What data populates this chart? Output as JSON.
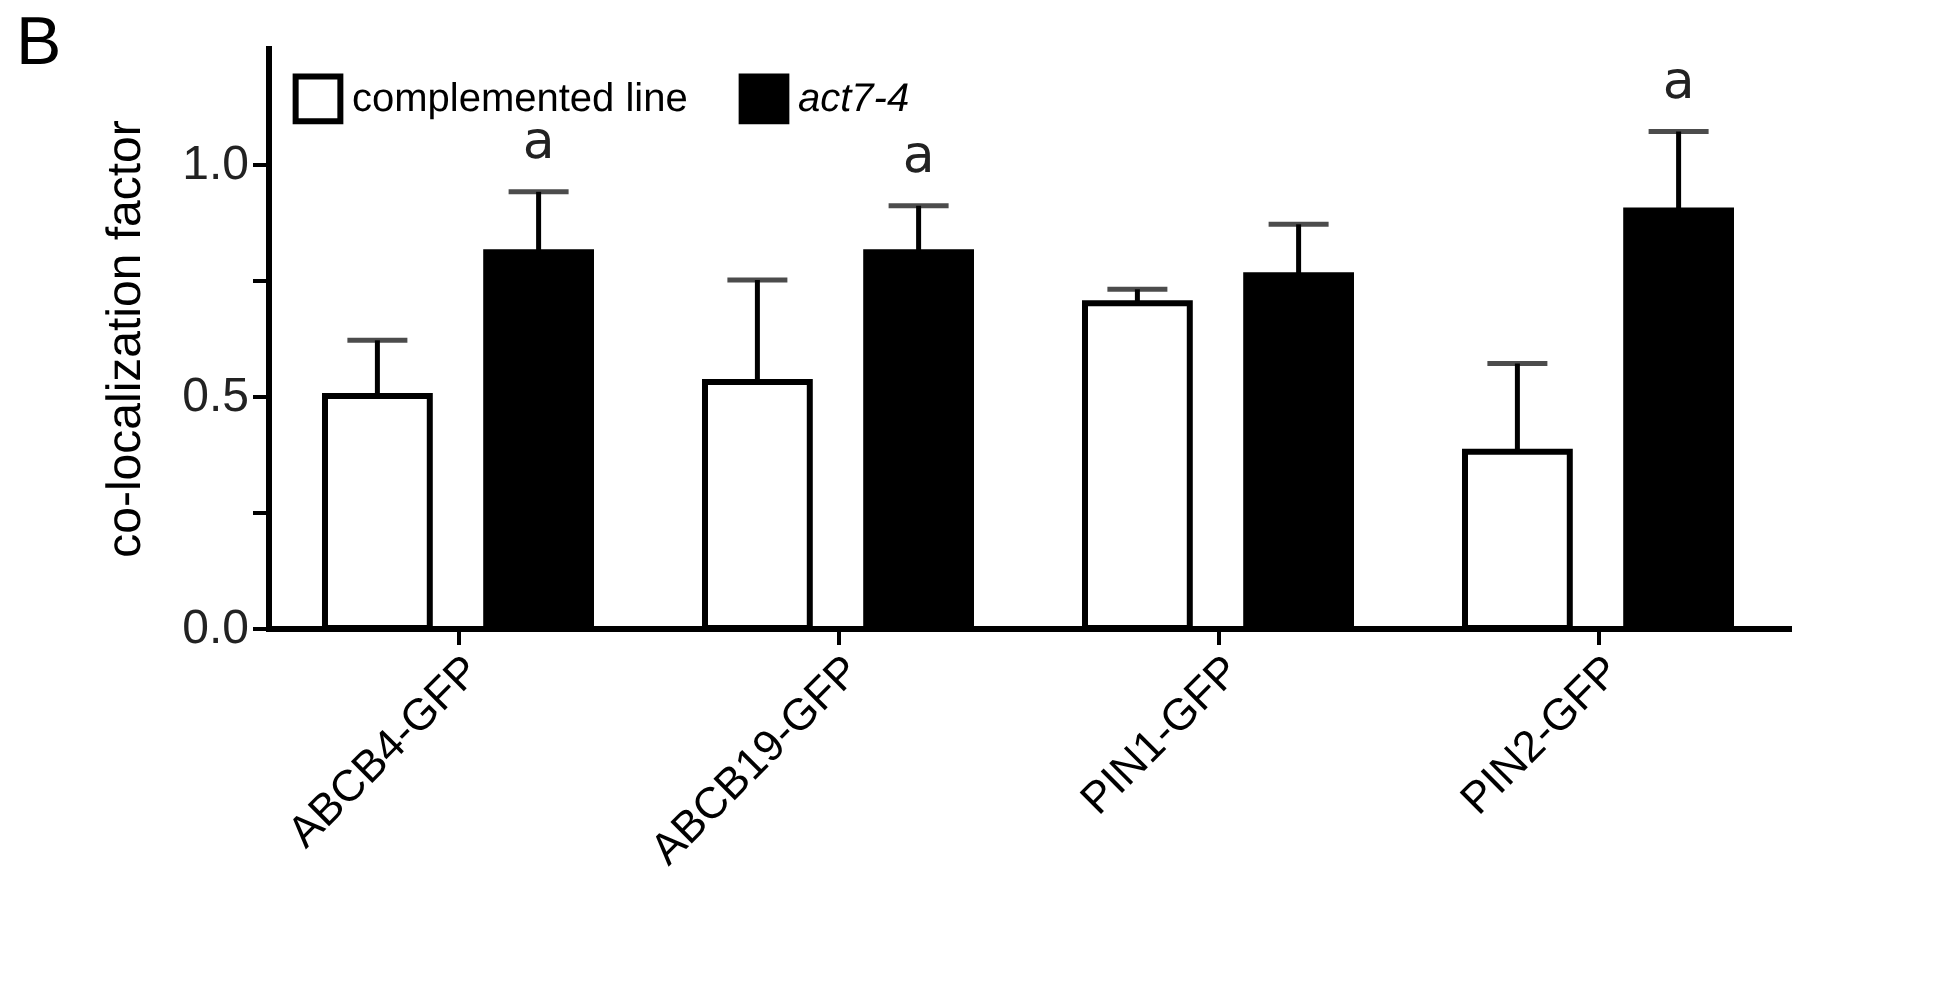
{
  "chart_data": {
    "type": "bar",
    "ylabel": "co-localization factor",
    "categories": [
      "ABCB4-GFP",
      "ABCB19-GFP",
      "PIN1-GFP",
      "PIN2-GFP"
    ],
    "series": [
      {
        "name": "complemented line",
        "color": "#ffffff",
        "values": [
          0.5,
          0.53,
          0.7,
          0.38
        ],
        "errors": [
          [
            0.5,
            0.62
          ],
          [
            0.53,
            0.75
          ],
          [
            0.7,
            0.73
          ],
          [
            0.38,
            0.57
          ]
        ]
      },
      {
        "name": "act7-4",
        "color": "#000000",
        "values": [
          0.81,
          0.81,
          0.76,
          0.9
        ],
        "value_labels": [
          "a",
          "a",
          null,
          "a"
        ],
        "errors": [
          [
            0.81,
            0.94
          ],
          [
            0.81,
            0.91
          ],
          [
            0.76,
            0.87
          ],
          [
            0.9,
            1.07
          ]
        ]
      }
    ],
    "ylim": [
      0,
      1.25
    ],
    "yticks": [
      {
        "value": 0,
        "label": "0.0"
      },
      {
        "value": 0.25,
        "label": null
      },
      {
        "value": 0.5,
        "label": "0.5"
      },
      {
        "value": 0.75,
        "label": null
      },
      {
        "value": 1,
        "label": "1.0"
      }
    ],
    "legend": "top left",
    "grid": false,
    "annotations": [
      "B"
    ]
  }
}
